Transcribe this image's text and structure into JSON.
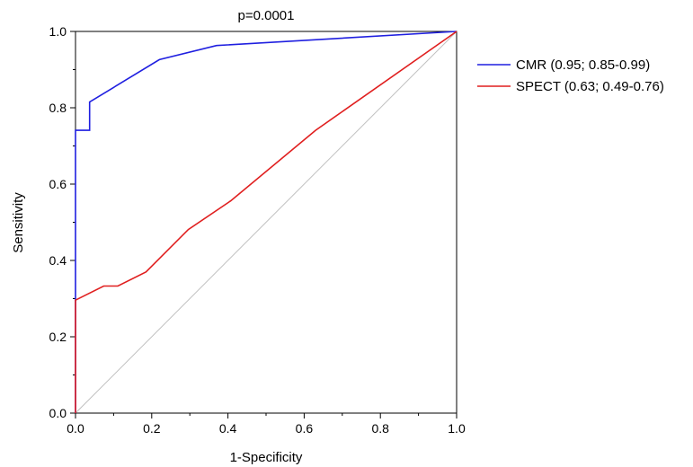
{
  "chart_data": {
    "type": "line",
    "title": "p=0.0001",
    "xlabel": "1-Specificity",
    "ylabel": "Sensitivity",
    "xlim": [
      0,
      1
    ],
    "ylim": [
      0,
      1
    ],
    "xticks": [
      "0.0",
      "0.2",
      "0.4",
      "0.6",
      "0.8",
      "1.0"
    ],
    "yticks": [
      "0.0",
      "0.2",
      "0.4",
      "0.6",
      "0.8",
      "1.0"
    ],
    "grid": false,
    "legend_position": "right",
    "series": [
      {
        "name": "CMR (0.95; 0.85-0.99)",
        "color": "#1f1fe0",
        "x": [
          0,
          0,
          0.037,
          0.037,
          0.22,
          0.37,
          1.0
        ],
        "y": [
          0,
          0.741,
          0.741,
          0.815,
          0.926,
          0.963,
          1.0
        ]
      },
      {
        "name": "SPECT (0.63; 0.49-0.76)",
        "color": "#e01f1f",
        "x": [
          0,
          0,
          0.074,
          0.111,
          0.185,
          0.296,
          0.407,
          0.63,
          1.0
        ],
        "y": [
          0,
          0.296,
          0.333,
          0.333,
          0.37,
          0.481,
          0.556,
          0.741,
          1.0
        ]
      }
    ],
    "reference_line": {
      "color": "#c0c0c0",
      "x": [
        0,
        1
      ],
      "y": [
        0,
        1
      ]
    }
  }
}
